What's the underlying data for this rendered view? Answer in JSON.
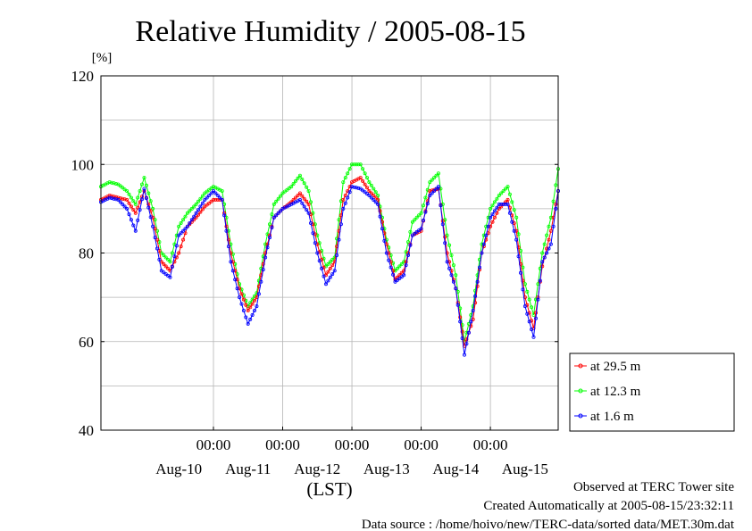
{
  "chart_data": {
    "type": "line",
    "title": "Relative Humidity / 2005-08-15",
    "ylabel": "[%]",
    "xlabel": "(LST)",
    "ylim": [
      40,
      120
    ],
    "y_ticks": [
      "40",
      "60",
      "80",
      "100",
      "120"
    ],
    "xlim": [
      "2005-08-09T09:00",
      "2005-08-15T23:30"
    ],
    "x_time_ticks": [
      {
        "time": "2005-08-11T00:00",
        "label": "00:00"
      },
      {
        "time": "2005-08-12T00:00",
        "label": "00:00"
      },
      {
        "time": "2005-08-13T00:00",
        "label": "00:00"
      },
      {
        "time": "2005-08-14T00:00",
        "label": "00:00"
      },
      {
        "time": "2005-08-15T00:00",
        "label": "00:00"
      }
    ],
    "x_date_labels": [
      {
        "time": "2005-08-10T12:00",
        "label": "Aug-10"
      },
      {
        "time": "2005-08-11T12:00",
        "label": "Aug-11"
      },
      {
        "time": "2005-08-12T12:00",
        "label": "Aug-12"
      },
      {
        "time": "2005-08-13T12:00",
        "label": "Aug-13"
      },
      {
        "time": "2005-08-14T12:00",
        "label": "Aug-14"
      },
      {
        "time": "2005-08-15T12:00",
        "label": "Aug-15"
      }
    ],
    "grid": true,
    "legend_position": "right",
    "series": [
      {
        "name": "at 29.5 m",
        "color": "#ff0000",
        "points": [
          [
            "2005-08-09T09:00",
            92
          ],
          [
            "2005-08-09T12:00",
            93
          ],
          [
            "2005-08-09T15:00",
            92.5
          ],
          [
            "2005-08-09T18:00",
            92
          ],
          [
            "2005-08-09T21:00",
            89
          ],
          [
            "2005-08-10T00:00",
            94
          ],
          [
            "2005-08-10T03:00",
            88
          ],
          [
            "2005-08-10T06:00",
            78
          ],
          [
            "2005-08-10T09:00",
            76
          ],
          [
            "2005-08-10T12:00",
            80
          ],
          [
            "2005-08-10T15:00",
            86
          ],
          [
            "2005-08-10T18:00",
            88
          ],
          [
            "2005-08-10T21:00",
            90.5
          ],
          [
            "2005-08-11T00:00",
            92
          ],
          [
            "2005-08-11T03:00",
            92
          ],
          [
            "2005-08-11T06:00",
            80
          ],
          [
            "2005-08-11T09:00",
            72
          ],
          [
            "2005-08-11T12:00",
            67
          ],
          [
            "2005-08-11T15:00",
            70
          ],
          [
            "2005-08-11T18:00",
            80
          ],
          [
            "2005-08-11T21:00",
            88
          ],
          [
            "2005-08-12T00:00",
            90
          ],
          [
            "2005-08-12T03:00",
            91.5
          ],
          [
            "2005-08-12T06:00",
            93.5
          ],
          [
            "2005-08-12T09:00",
            91
          ],
          [
            "2005-08-12T12:00",
            82
          ],
          [
            "2005-08-12T15:00",
            75
          ],
          [
            "2005-08-12T18:00",
            78
          ],
          [
            "2005-08-12T21:00",
            92
          ],
          [
            "2005-08-13T00:00",
            96
          ],
          [
            "2005-08-13T03:00",
            97
          ],
          [
            "2005-08-13T06:00",
            94
          ],
          [
            "2005-08-13T09:00",
            92
          ],
          [
            "2005-08-13T12:00",
            82
          ],
          [
            "2005-08-13T15:00",
            74
          ],
          [
            "2005-08-13T18:00",
            76
          ],
          [
            "2005-08-13T21:00",
            84
          ],
          [
            "2005-08-14T00:00",
            85
          ],
          [
            "2005-08-14T03:00",
            94
          ],
          [
            "2005-08-14T06:00",
            94.5
          ],
          [
            "2005-08-14T09:00",
            80
          ],
          [
            "2005-08-14T12:00",
            72
          ],
          [
            "2005-08-14T15:00",
            59
          ],
          [
            "2005-08-14T18:00",
            65
          ],
          [
            "2005-08-14T21:00",
            80
          ],
          [
            "2005-08-15T00:00",
            86
          ],
          [
            "2005-08-15T03:00",
            90
          ],
          [
            "2005-08-15T06:00",
            92
          ],
          [
            "2005-08-15T09:00",
            85
          ],
          [
            "2005-08-15T12:00",
            70
          ],
          [
            "2005-08-15T15:00",
            63
          ],
          [
            "2005-08-15T18:00",
            77
          ],
          [
            "2005-08-15T21:00",
            85
          ],
          [
            "2005-08-15T23:30",
            94
          ]
        ]
      },
      {
        "name": "at 12.3 m",
        "color": "#00ff00",
        "points": [
          [
            "2005-08-09T09:00",
            95
          ],
          [
            "2005-08-09T12:00",
            96
          ],
          [
            "2005-08-09T15:00",
            95.5
          ],
          [
            "2005-08-09T18:00",
            94
          ],
          [
            "2005-08-09T21:00",
            91
          ],
          [
            "2005-08-10T00:00",
            97
          ],
          [
            "2005-08-10T03:00",
            90
          ],
          [
            "2005-08-10T06:00",
            80
          ],
          [
            "2005-08-10T09:00",
            78
          ],
          [
            "2005-08-10T12:00",
            86
          ],
          [
            "2005-08-10T15:00",
            89
          ],
          [
            "2005-08-10T18:00",
            91
          ],
          [
            "2005-08-10T21:00",
            93.5
          ],
          [
            "2005-08-11T00:00",
            95
          ],
          [
            "2005-08-11T03:00",
            94
          ],
          [
            "2005-08-11T06:00",
            82
          ],
          [
            "2005-08-11T09:00",
            73
          ],
          [
            "2005-08-11T12:00",
            68
          ],
          [
            "2005-08-11T15:00",
            71
          ],
          [
            "2005-08-11T18:00",
            82
          ],
          [
            "2005-08-11T21:00",
            91
          ],
          [
            "2005-08-12T00:00",
            93.5
          ],
          [
            "2005-08-12T03:00",
            95
          ],
          [
            "2005-08-12T06:00",
            97.5
          ],
          [
            "2005-08-12T09:00",
            94
          ],
          [
            "2005-08-12T12:00",
            84
          ],
          [
            "2005-08-12T15:00",
            77
          ],
          [
            "2005-08-12T18:00",
            79
          ],
          [
            "2005-08-12T21:00",
            96
          ],
          [
            "2005-08-13T00:00",
            100
          ],
          [
            "2005-08-13T03:00",
            100
          ],
          [
            "2005-08-13T06:00",
            96
          ],
          [
            "2005-08-13T09:00",
            93
          ],
          [
            "2005-08-13T12:00",
            83
          ],
          [
            "2005-08-13T15:00",
            76
          ],
          [
            "2005-08-13T18:00",
            78
          ],
          [
            "2005-08-13T21:00",
            87
          ],
          [
            "2005-08-14T00:00",
            89
          ],
          [
            "2005-08-14T03:00",
            96
          ],
          [
            "2005-08-14T06:00",
            98
          ],
          [
            "2005-08-14T09:00",
            84
          ],
          [
            "2005-08-14T12:00",
            75
          ],
          [
            "2005-08-14T15:00",
            60
          ],
          [
            "2005-08-14T18:00",
            68
          ],
          [
            "2005-08-14T21:00",
            82
          ],
          [
            "2005-08-15T00:00",
            90
          ],
          [
            "2005-08-15T03:00",
            93
          ],
          [
            "2005-08-15T06:00",
            95
          ],
          [
            "2005-08-15T09:00",
            88
          ],
          [
            "2005-08-15T12:00",
            73
          ],
          [
            "2005-08-15T15:00",
            66
          ],
          [
            "2005-08-15T18:00",
            80
          ],
          [
            "2005-08-15T21:00",
            88
          ],
          [
            "2005-08-15T23:30",
            99
          ]
        ]
      },
      {
        "name": "at 1.6 m",
        "color": "#0000ff",
        "points": [
          [
            "2005-08-09T09:00",
            91.5
          ],
          [
            "2005-08-09T12:00",
            92.5
          ],
          [
            "2005-08-09T15:00",
            92
          ],
          [
            "2005-08-09T18:00",
            90
          ],
          [
            "2005-08-09T21:00",
            85
          ],
          [
            "2005-08-10T00:00",
            94.5
          ],
          [
            "2005-08-10T03:00",
            86
          ],
          [
            "2005-08-10T06:00",
            76
          ],
          [
            "2005-08-10T09:00",
            74.5
          ],
          [
            "2005-08-10T12:00",
            84
          ],
          [
            "2005-08-10T15:00",
            86
          ],
          [
            "2005-08-10T18:00",
            89
          ],
          [
            "2005-08-10T21:00",
            92
          ],
          [
            "2005-08-11T00:00",
            94
          ],
          [
            "2005-08-11T03:00",
            92
          ],
          [
            "2005-08-11T06:00",
            78
          ],
          [
            "2005-08-11T09:00",
            70
          ],
          [
            "2005-08-11T12:00",
            64
          ],
          [
            "2005-08-11T15:00",
            68
          ],
          [
            "2005-08-11T18:00",
            79
          ],
          [
            "2005-08-11T21:00",
            88
          ],
          [
            "2005-08-12T00:00",
            90
          ],
          [
            "2005-08-12T03:00",
            91
          ],
          [
            "2005-08-12T06:00",
            92
          ],
          [
            "2005-08-12T09:00",
            89
          ],
          [
            "2005-08-12T12:00",
            80
          ],
          [
            "2005-08-12T15:00",
            73
          ],
          [
            "2005-08-12T18:00",
            76
          ],
          [
            "2005-08-12T21:00",
            90
          ],
          [
            "2005-08-13T00:00",
            95
          ],
          [
            "2005-08-13T03:00",
            94.5
          ],
          [
            "2005-08-13T06:00",
            93
          ],
          [
            "2005-08-13T09:00",
            91
          ],
          [
            "2005-08-13T12:00",
            80
          ],
          [
            "2005-08-13T15:00",
            73.5
          ],
          [
            "2005-08-13T18:00",
            75
          ],
          [
            "2005-08-13T21:00",
            84
          ],
          [
            "2005-08-14T00:00",
            85.5
          ],
          [
            "2005-08-14T03:00",
            93
          ],
          [
            "2005-08-14T06:00",
            95
          ],
          [
            "2005-08-14T09:00",
            78
          ],
          [
            "2005-08-14T12:00",
            72
          ],
          [
            "2005-08-14T15:00",
            57
          ],
          [
            "2005-08-14T18:00",
            67
          ],
          [
            "2005-08-14T21:00",
            80
          ],
          [
            "2005-08-15T00:00",
            88
          ],
          [
            "2005-08-15T03:00",
            91
          ],
          [
            "2005-08-15T06:00",
            91
          ],
          [
            "2005-08-15T09:00",
            83
          ],
          [
            "2005-08-15T12:00",
            68
          ],
          [
            "2005-08-15T15:00",
            61
          ],
          [
            "2005-08-15T18:00",
            78
          ],
          [
            "2005-08-15T21:00",
            82
          ],
          [
            "2005-08-15T23:30",
            94
          ]
        ]
      }
    ]
  },
  "footer": {
    "line1": "Observed at TERC Tower site",
    "line2": "Created Automatically at 2005-08-15/23:32:11",
    "line3": "Data source : /home/hoivo/new/TERC-data/sorted  data/MET.30m.dat"
  }
}
